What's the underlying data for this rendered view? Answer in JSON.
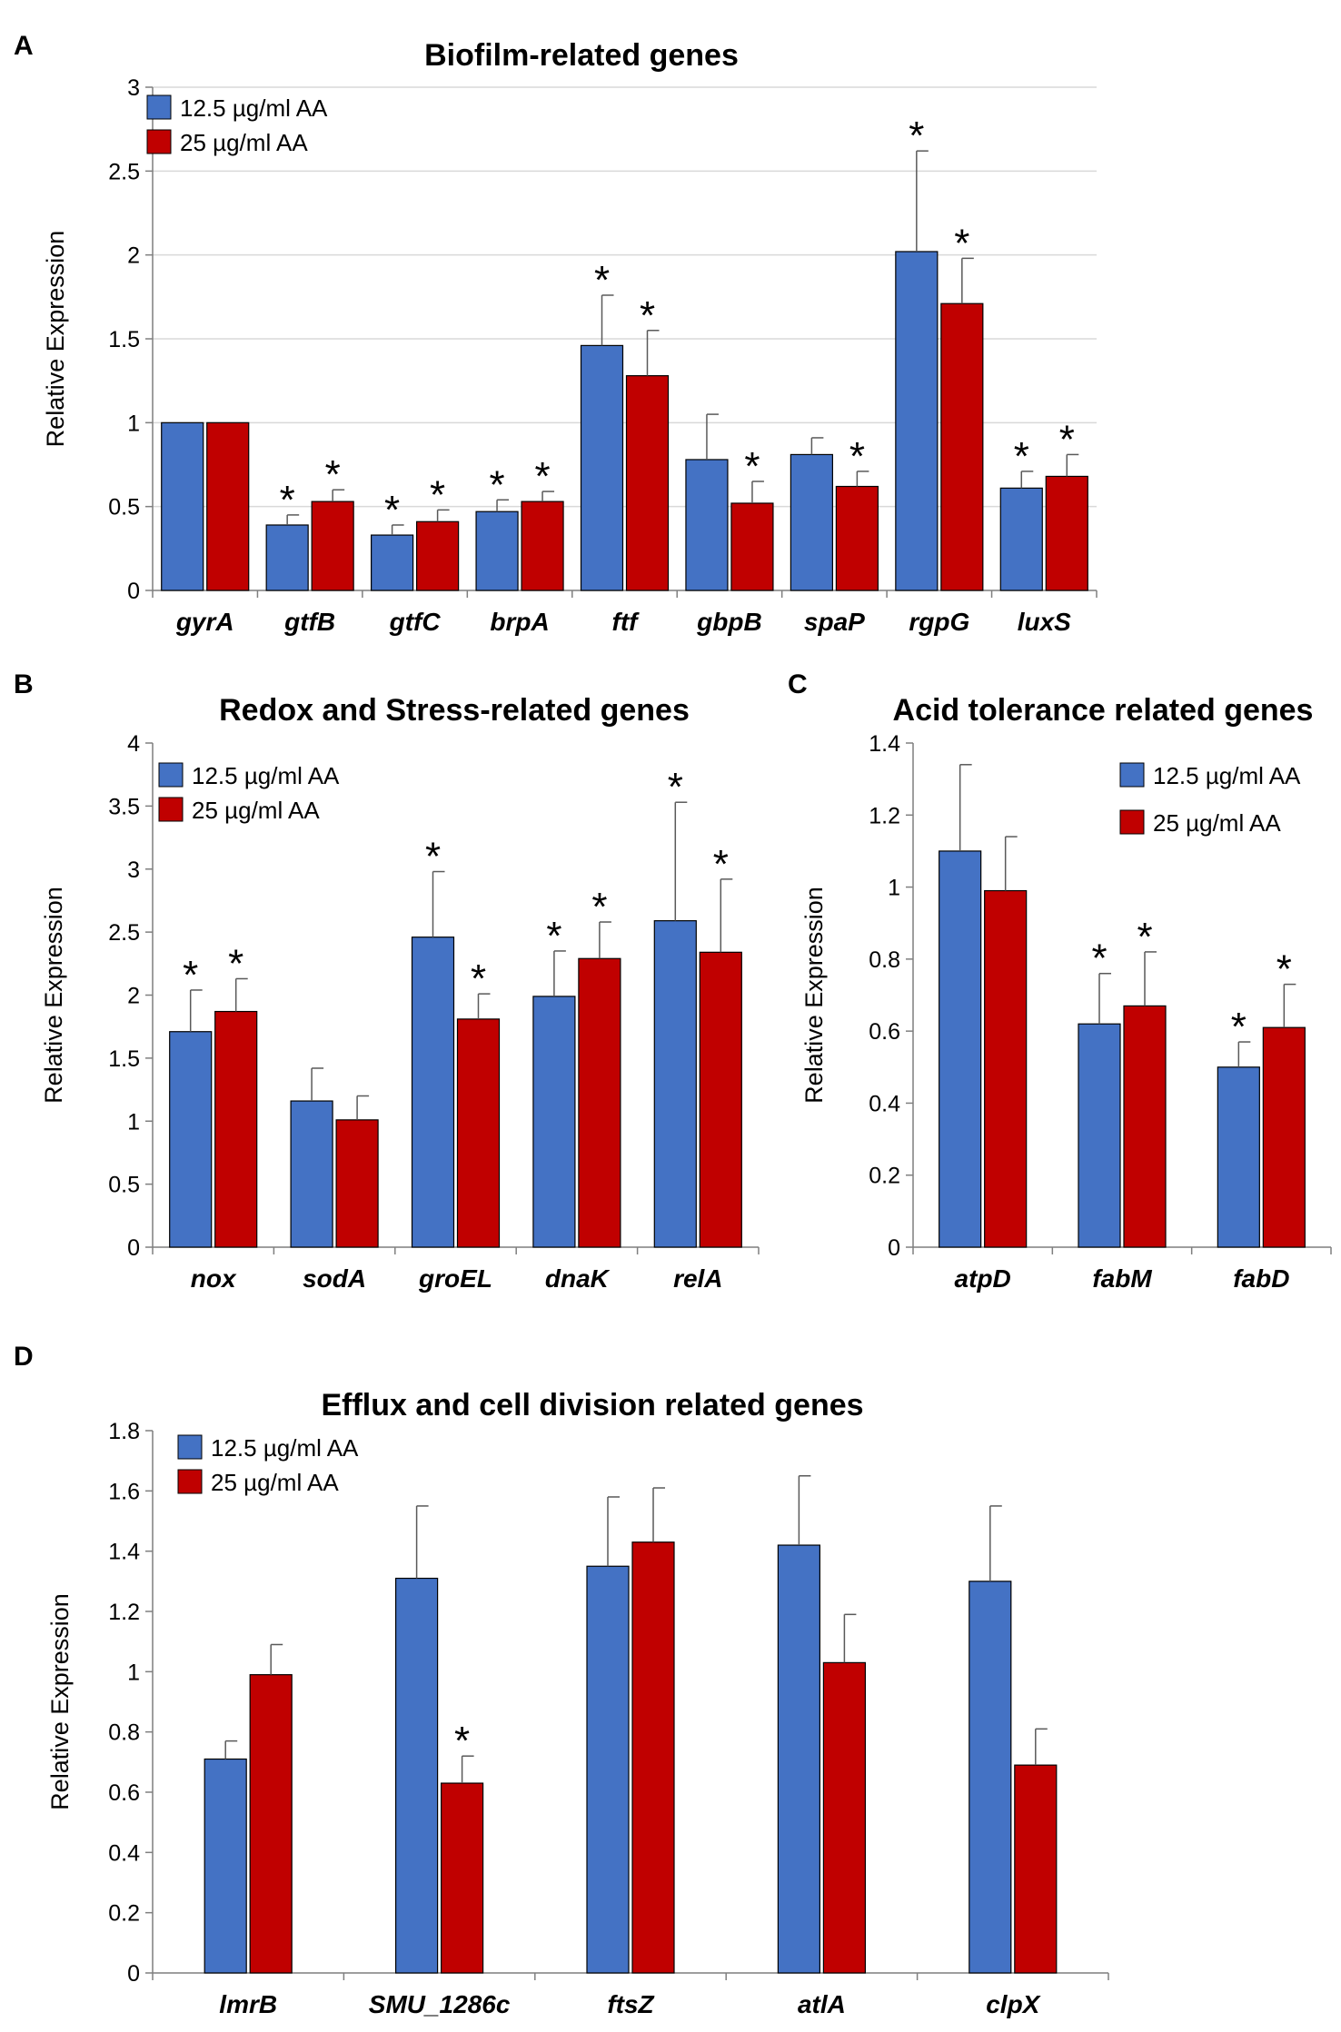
{
  "colors": {
    "blue": "#4472c4",
    "red": "#c00000",
    "grid": "#d9d9d9",
    "axis": "#7f7f7f",
    "bar_edge": "#000000",
    "error_bar": "#595959"
  },
  "chart_data": [
    {
      "panel": "A",
      "type": "bar",
      "title": "Biofilm-related genes",
      "ylabel": "Relative Expression",
      "xlabel": "",
      "ylim": [
        0,
        3
      ],
      "yticks": [
        "0",
        "0.5",
        "1",
        "1.5",
        "2",
        "2.5",
        "3"
      ],
      "grid": true,
      "legend_position": "top-left",
      "categories": [
        "gyrA",
        "gtfB",
        "gtfC",
        "brpA",
        "ftf",
        "gbpB",
        "spaP",
        "rgpG",
        "luxS"
      ],
      "series": [
        {
          "name": "12.5 µg/ml AA",
          "values": [
            1.0,
            0.39,
            0.33,
            0.47,
            1.46,
            0.78,
            0.81,
            2.02,
            0.61
          ],
          "errors": [
            0,
            0.06,
            0.06,
            0.07,
            0.3,
            0.27,
            0.1,
            0.6,
            0.1
          ],
          "significant": [
            false,
            true,
            true,
            true,
            true,
            false,
            false,
            true,
            true
          ]
        },
        {
          "name": "25 µg/ml AA",
          "values": [
            1.0,
            0.53,
            0.41,
            0.53,
            1.28,
            0.52,
            0.62,
            1.71,
            0.68
          ],
          "errors": [
            0,
            0.07,
            0.07,
            0.06,
            0.27,
            0.13,
            0.09,
            0.27,
            0.13
          ],
          "significant": [
            false,
            true,
            true,
            true,
            true,
            true,
            true,
            true,
            true
          ]
        }
      ]
    },
    {
      "panel": "B",
      "type": "bar",
      "title": "Redox and Stress-related genes",
      "ylabel": "Relative Expression",
      "xlabel": "",
      "ylim": [
        0,
        4
      ],
      "yticks": [
        "0",
        "0.5",
        "1",
        "1.5",
        "2",
        "2.5",
        "3",
        "3.5",
        "4"
      ],
      "grid": false,
      "legend_position": "top-left",
      "categories": [
        "nox",
        "sodA",
        "groEL",
        "dnaK",
        "relA"
      ],
      "series": [
        {
          "name": "12.5 µg/ml AA",
          "values": [
            1.71,
            1.16,
            2.46,
            1.99,
            2.59
          ],
          "errors": [
            0.33,
            0.26,
            0.52,
            0.36,
            0.94
          ],
          "significant": [
            true,
            false,
            true,
            true,
            true
          ]
        },
        {
          "name": "25 µg/ml AA",
          "values": [
            1.87,
            1.01,
            1.81,
            2.29,
            2.34
          ],
          "errors": [
            0.26,
            0.19,
            0.2,
            0.29,
            0.58
          ],
          "significant": [
            true,
            false,
            true,
            true,
            true
          ]
        }
      ]
    },
    {
      "panel": "C",
      "type": "bar",
      "title": "Acid tolerance related genes",
      "ylabel": "Relative Expression",
      "xlabel": "",
      "ylim": [
        0,
        1.4
      ],
      "yticks": [
        "0",
        "0.2",
        "0.4",
        "0.6",
        "0.8",
        "1",
        "1.2",
        "1.4"
      ],
      "grid": false,
      "legend_position": "top-right",
      "categories": [
        "atpD",
        "fabM",
        "fabD"
      ],
      "series": [
        {
          "name": "12.5 µg/ml AA",
          "values": [
            1.1,
            0.62,
            0.5
          ],
          "errors": [
            0.24,
            0.14,
            0.07
          ],
          "significant": [
            false,
            true,
            true
          ]
        },
        {
          "name": "25 µg/ml AA",
          "values": [
            0.99,
            0.67,
            0.61
          ],
          "errors": [
            0.15,
            0.15,
            0.12
          ],
          "significant": [
            false,
            true,
            true
          ]
        }
      ]
    },
    {
      "panel": "D",
      "type": "bar",
      "title": "Efflux and cell division related genes",
      "ylabel": "Relative Expression",
      "xlabel": "",
      "ylim": [
        0,
        1.8
      ],
      "yticks": [
        "0",
        "0.2",
        "0.4",
        "0.6",
        "0.8",
        "1",
        "1.2",
        "1.4",
        "1.6",
        "1.8"
      ],
      "grid": false,
      "legend_position": "top-left",
      "categories": [
        "lmrB",
        "SMU_1286c",
        "ftsZ",
        "atlA",
        "clpX"
      ],
      "series": [
        {
          "name": "12.5 µg/ml AA",
          "values": [
            0.71,
            1.31,
            1.35,
            1.42,
            1.3
          ],
          "errors": [
            0.06,
            0.24,
            0.23,
            0.23,
            0.25
          ],
          "significant": [
            false,
            false,
            false,
            false,
            false
          ]
        },
        {
          "name": "25 µg/ml AA",
          "values": [
            0.99,
            0.63,
            1.43,
            1.03,
            0.69
          ],
          "errors": [
            0.1,
            0.09,
            0.18,
            0.16,
            0.12
          ],
          "significant": [
            false,
            true,
            false,
            false,
            false
          ]
        }
      ]
    }
  ]
}
